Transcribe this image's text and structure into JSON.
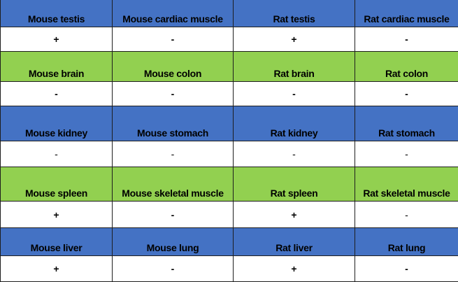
{
  "colors": {
    "blue_band": "#4472c4",
    "green_band": "#92d050",
    "white": "#ffffff"
  },
  "rows": [
    {
      "band": "blue",
      "headers": [
        "Mouse testis",
        "Mouse cardiac muscle",
        "Rat testis",
        "Rat cardiac muscle"
      ],
      "values": [
        "+",
        "-",
        "+",
        "-"
      ]
    },
    {
      "band": "green",
      "headers": [
        "Mouse brain",
        "Mouse colon",
        "Rat brain",
        "Rat colon"
      ],
      "values": [
        "-",
        "-",
        "-",
        "-"
      ]
    },
    {
      "band": "blue",
      "headers": [
        "Mouse kidney",
        "Mouse stomach",
        "Rat kidney",
        "Rat stomach"
      ],
      "values": [
        "-",
        "-",
        "-",
        "-"
      ]
    },
    {
      "band": "green",
      "headers": [
        "Mouse spleen",
        "Mouse skeletal muscle",
        "Rat spleen",
        "Rat skeletal muscle"
      ],
      "values": [
        "+",
        "-",
        "+",
        "-"
      ]
    },
    {
      "band": "blue",
      "headers": [
        "Mouse liver",
        "Mouse lung",
        "Rat liver",
        "Rat lung"
      ],
      "values": [
        "+",
        "-",
        "+",
        "-"
      ]
    }
  ]
}
